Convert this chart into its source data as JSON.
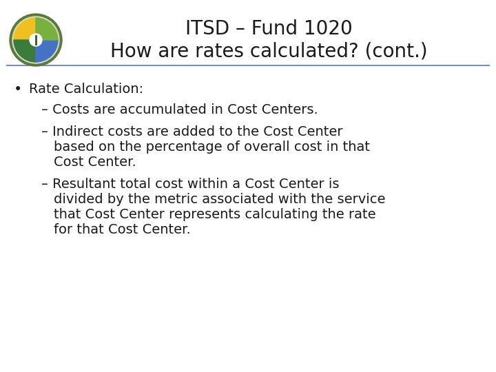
{
  "title_line1": "ITSD – Fund 1020",
  "title_line2": "How are rates calculated? (cont.)",
  "title_fontsize": 20,
  "body_fontsize": 14,
  "background_color": "#ffffff",
  "text_color": "#1a1a1a",
  "line_color": "#7393b3",
  "bullet": "•",
  "bullet_text": "Rate Calculation:",
  "logo_outer_color": "#5a7a3a",
  "logo_inner_colors": [
    "#f0c020",
    "#3a7a3a",
    "#4472c4",
    "#7ab040"
  ]
}
